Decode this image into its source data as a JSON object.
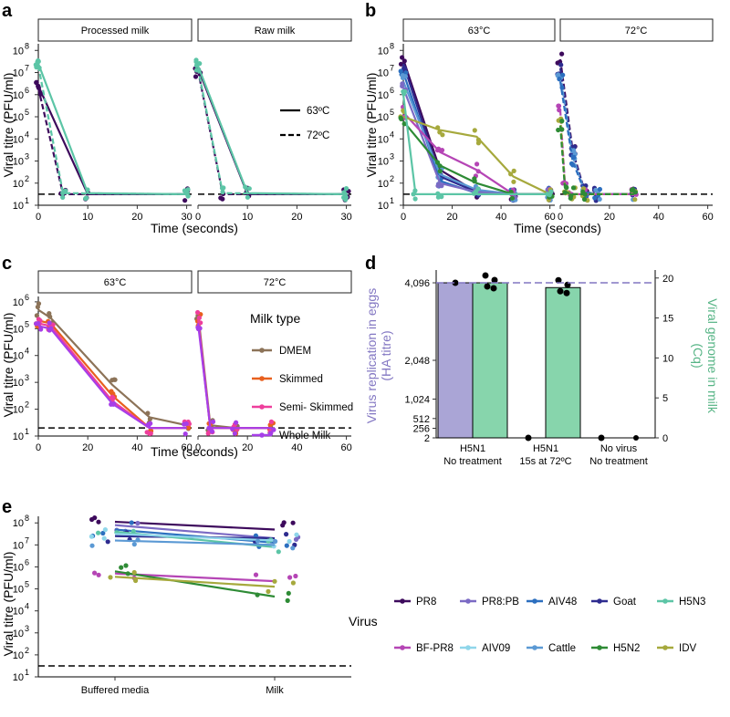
{
  "colors": {
    "PR8": "#3d0a5c",
    "BF-PR8": "#b545b5",
    "PR8:PB": "#7b6ac4",
    "AIV09": "#8fd6ea",
    "AIV48": "#2c6fbf",
    "Cattle": "#5b99d4",
    "Goat": "#2e2c8f",
    "H5N2": "#2e8b35",
    "H5N3": "#5cc5a6",
    "IDV": "#a6a93d",
    "processed": "#3d0a5c",
    "raw": "#5cc5a6",
    "DMEM": "#8c7358",
    "Skimmed": "#e8601f",
    "Semi- Skimmed": "#ee3e9c",
    "Whole Milk": "#a63ee8",
    "ha": "#aaa5d6",
    "genome": "#87d5ac",
    "haLabel": "#8276c2",
    "genomeLabel": "#56b485"
  },
  "chart_data": [
    {
      "panel": "a",
      "type": "line",
      "facets": [
        "Processed milk",
        "Raw milk"
      ],
      "xlabel": "Time (seconds)",
      "ylabel": "Viral titre (PFU/ml)",
      "x_ticks": [
        "0",
        "10",
        "20",
        "30"
      ],
      "xlim": [
        0,
        31
      ],
      "ylim_log10": [
        1,
        8.3
      ],
      "y_ticks": [
        {
          "e": 1,
          "label": "10"
        },
        {
          "e": 2,
          "label": "10"
        },
        {
          "e": 3,
          "label": "10"
        },
        {
          "e": 4,
          "label": "10"
        },
        {
          "e": 5,
          "label": "10"
        },
        {
          "e": 6,
          "label": "10"
        },
        {
          "e": 7,
          "label": "10"
        },
        {
          "e": 8,
          "label": "10"
        }
      ],
      "limit_of_detection_log10": 1.5,
      "legend": [
        {
          "label": "63ºC",
          "style": "solid"
        },
        {
          "label": "72ºC",
          "style": "dashed"
        }
      ],
      "series": [
        {
          "facet": 0,
          "group": "processed",
          "temp": "63",
          "x": [
            0,
            10,
            30
          ],
          "log10": [
            6.4,
            1.5,
            1.5
          ]
        },
        {
          "facet": 0,
          "group": "processed",
          "temp": "72",
          "x": [
            0,
            5,
            30
          ],
          "log10": [
            6.3,
            1.5,
            1.5
          ]
        },
        {
          "facet": 0,
          "group": "raw",
          "temp": "63",
          "x": [
            0,
            10,
            30
          ],
          "log10": [
            7.4,
            1.55,
            1.5
          ]
        },
        {
          "facet": 0,
          "group": "raw",
          "temp": "72",
          "x": [
            0,
            5,
            30
          ],
          "log10": [
            7.3,
            1.55,
            1.5
          ]
        },
        {
          "facet": 1,
          "group": "processed",
          "temp": "63",
          "x": [
            0,
            10,
            30
          ],
          "log10": [
            7.2,
            1.5,
            1.5
          ]
        },
        {
          "facet": 1,
          "group": "processed",
          "temp": "72",
          "x": [
            0,
            5,
            30
          ],
          "log10": [
            7.1,
            1.5,
            1.5
          ]
        },
        {
          "facet": 1,
          "group": "raw",
          "temp": "63",
          "x": [
            0,
            10,
            30
          ],
          "log10": [
            7.3,
            1.55,
            1.5
          ]
        },
        {
          "facet": 1,
          "group": "raw",
          "temp": "72",
          "x": [
            0,
            5,
            30
          ],
          "log10": [
            7.2,
            1.55,
            1.5
          ]
        }
      ]
    },
    {
      "panel": "b",
      "type": "line",
      "facets": [
        "63°C",
        "72°C"
      ],
      "xlabel": "Time (seconds)",
      "ylabel": "Viral titre (PFU/ml)",
      "x_ticks": [
        "0",
        "20",
        "40",
        "60"
      ],
      "xlim": [
        0,
        62
      ],
      "ylim_log10": [
        1,
        8.3
      ],
      "y_ticks": [
        {
          "e": 1,
          "label": "10"
        },
        {
          "e": 2,
          "label": "10"
        },
        {
          "e": 3,
          "label": "10"
        },
        {
          "e": 4,
          "label": "10"
        },
        {
          "e": 5,
          "label": "10"
        },
        {
          "e": 6,
          "label": "10"
        },
        {
          "e": 7,
          "label": "10"
        },
        {
          "e": 8,
          "label": "10"
        }
      ],
      "limit_of_detection_log10": 1.5,
      "series": [
        {
          "facet": 0,
          "group": "PR8",
          "x": [
            0,
            15,
            30,
            45,
            60
          ],
          "log10": [
            7.6,
            2.6,
            1.6,
            1.5,
            1.5
          ]
        },
        {
          "facet": 0,
          "group": "Goat",
          "x": [
            0,
            15,
            30,
            45,
            60
          ],
          "log10": [
            7.4,
            2.3,
            1.6,
            1.5,
            1.5
          ]
        },
        {
          "facet": 0,
          "group": "AIV48",
          "x": [
            0,
            15,
            30,
            45,
            60
          ],
          "log10": [
            7.0,
            2.1,
            1.55,
            1.5,
            1.5
          ]
        },
        {
          "facet": 0,
          "group": "Cattle",
          "x": [
            0,
            15,
            30,
            45,
            60
          ],
          "log10": [
            6.6,
            2.4,
            1.7,
            1.5,
            1.5
          ]
        },
        {
          "facet": 0,
          "group": "PR8:PB",
          "x": [
            0,
            15,
            30,
            45,
            60
          ],
          "log10": [
            6.3,
            2.0,
            1.6,
            1.5,
            1.5
          ]
        },
        {
          "facet": 0,
          "group": "BF-PR8",
          "x": [
            0,
            15,
            30,
            45,
            60
          ],
          "log10": [
            5.2,
            3.4,
            2.6,
            1.5,
            1.5
          ]
        },
        {
          "facet": 0,
          "group": "IDV",
          "x": [
            0,
            15,
            30,
            45,
            60
          ],
          "log10": [
            5.0,
            4.4,
            4.1,
            2.3,
            1.5
          ]
        },
        {
          "facet": 0,
          "group": "H5N2",
          "x": [
            0,
            15,
            30,
            45,
            60
          ],
          "log10": [
            4.8,
            2.8,
            2.0,
            1.5,
            1.5
          ]
        },
        {
          "facet": 0,
          "group": "H5N3",
          "x": [
            0,
            5,
            15,
            30,
            60
          ],
          "log10": [
            6.0,
            1.5,
            1.5,
            1.5,
            1.5
          ]
        },
        {
          "facet": 1,
          "group": "PR8",
          "x": [
            0,
            5,
            10,
            15,
            30
          ],
          "log10": [
            7.6,
            3.5,
            1.6,
            1.5,
            1.5
          ]
        },
        {
          "facet": 1,
          "group": "Goat",
          "x": [
            0,
            5,
            10,
            15,
            30
          ],
          "log10": [
            7.2,
            3.4,
            1.6,
            1.5,
            1.5
          ]
        },
        {
          "facet": 1,
          "group": "Cattle",
          "x": [
            0,
            5,
            10,
            15,
            30
          ],
          "log10": [
            6.9,
            3.2,
            1.6,
            1.5,
            1.5
          ]
        },
        {
          "facet": 1,
          "group": "AIV48",
          "x": [
            0,
            5,
            10,
            15,
            30
          ],
          "log10": [
            6.6,
            3.0,
            1.6,
            1.5,
            1.5
          ]
        },
        {
          "facet": 1,
          "group": "BF-PR8",
          "x": [
            0,
            2,
            5,
            10,
            30
          ],
          "log10": [
            5.3,
            1.8,
            1.5,
            1.5,
            1.5
          ]
        },
        {
          "facet": 1,
          "group": "IDV",
          "x": [
            0,
            2,
            5,
            10,
            30
          ],
          "log10": [
            5.0,
            1.7,
            1.5,
            1.5,
            1.5
          ]
        },
        {
          "facet": 1,
          "group": "H5N2",
          "x": [
            0,
            2,
            5,
            10,
            30
          ],
          "log10": [
            4.6,
            1.6,
            1.5,
            1.5,
            1.5
          ]
        }
      ]
    },
    {
      "panel": "c",
      "type": "line",
      "facets": [
        "63°C",
        "72°C"
      ],
      "xlabel": "Time (seconds)",
      "ylabel": "Viral titre (PFU/ml)",
      "x_ticks": [
        "0",
        "20",
        "40",
        "60"
      ],
      "xlim": [
        0,
        62
      ],
      "ylim_log10": [
        1,
        6.2
      ],
      "y_ticks": [
        {
          "e": 1,
          "label": "10"
        },
        {
          "e": 2,
          "label": "10"
        },
        {
          "e": 3,
          "label": "10"
        },
        {
          "e": 4,
          "label": "10"
        },
        {
          "e": 5,
          "label": "10"
        },
        {
          "e": 6,
          "label": "10"
        }
      ],
      "limit_of_detection_log10": 1.3,
      "legend_title": "Milk type",
      "legend": [
        "DMEM",
        "Skimmed",
        "Semi- Skimmed",
        "Whole Milk"
      ],
      "series": [
        {
          "facet": 0,
          "group": "DMEM",
          "x": [
            0,
            5,
            30,
            45,
            60
          ],
          "log10": [
            5.7,
            5.4,
            2.9,
            1.7,
            1.4
          ]
        },
        {
          "facet": 0,
          "group": "Skimmed",
          "x": [
            0,
            5,
            30,
            45,
            60
          ],
          "log10": [
            5.3,
            5.2,
            2.5,
            1.3,
            1.3
          ]
        },
        {
          "facet": 0,
          "group": "Semi- Skimmed",
          "x": [
            0,
            5,
            30,
            45,
            60
          ],
          "log10": [
            5.2,
            5.1,
            2.3,
            1.3,
            1.3
          ]
        },
        {
          "facet": 0,
          "group": "Whole Milk",
          "x": [
            0,
            5,
            30,
            45,
            60
          ],
          "log10": [
            5.1,
            5.0,
            2.2,
            1.3,
            1.3
          ]
        },
        {
          "facet": 1,
          "group": "DMEM",
          "x": [
            0,
            5,
            15,
            30
          ],
          "log10": [
            5.6,
            1.4,
            1.3,
            1.3
          ]
        },
        {
          "facet": 1,
          "group": "Skimmed",
          "x": [
            0,
            5,
            15,
            30
          ],
          "log10": [
            5.3,
            1.3,
            1.3,
            1.3
          ]
        },
        {
          "facet": 1,
          "group": "Semi- Skimmed",
          "x": [
            0,
            5,
            15,
            30
          ],
          "log10": [
            5.4,
            1.3,
            1.3,
            1.3
          ]
        },
        {
          "facet": 1,
          "group": "Whole Milk",
          "x": [
            0,
            5,
            15,
            30
          ],
          "log10": [
            5.2,
            1.3,
            1.3,
            1.3
          ]
        }
      ]
    },
    {
      "panel": "d",
      "type": "bar",
      "categories": [
        "H5N1\nNo treatment",
        "H5N1\n15s at 72ºC",
        "No virus\nNo treatment"
      ],
      "series": [
        {
          "name": "HA titre",
          "axis": "left",
          "values": [
            4096,
            2,
            2
          ]
        },
        {
          "name": "Cq",
          "axis": "right",
          "values": [
            19.4,
            18.8,
            0
          ]
        }
      ],
      "ylabel_left": [
        "Virus replication in eggs",
        "(HA titre)"
      ],
      "ylabel_right": [
        "Viral genome in milk",
        "(Cq)"
      ],
      "left_ticks": [
        "4,096",
        "2,048",
        "1,024",
        "512",
        "256",
        "2"
      ],
      "right_ticks": [
        0,
        5,
        10,
        15,
        20
      ],
      "right_ylim": [
        0,
        21
      ],
      "reference_line_cq": 19.4
    },
    {
      "panel": "e",
      "type": "line",
      "categories": [
        "Buffered media",
        "Milk"
      ],
      "ylabel": "Viral titre (PFU/ml)",
      "ylim_log10": [
        1,
        8.3
      ],
      "y_ticks": [
        {
          "e": 1,
          "label": "10"
        },
        {
          "e": 2,
          "label": "10"
        },
        {
          "e": 3,
          "label": "10"
        },
        {
          "e": 4,
          "label": "10"
        },
        {
          "e": 5,
          "label": "10"
        },
        {
          "e": 6,
          "label": "10"
        },
        {
          "e": 7,
          "label": "10"
        },
        {
          "e": 8,
          "label": "10"
        }
      ],
      "limit_of_detection_log10": 1.5,
      "legend_title": "Virus",
      "legend": [
        "PR8",
        "PR8:PB",
        "AIV48",
        "Goat",
        "H5N3",
        "BF-PR8",
        "AIV09",
        "Cattle",
        "H5N2",
        "IDV"
      ],
      "series": [
        {
          "name": "PR8",
          "values_log10": [
            8.05,
            7.7
          ]
        },
        {
          "name": "PR8:PB",
          "values_log10": [
            7.9,
            7.3
          ]
        },
        {
          "name": "AIV48",
          "values_log10": [
            7.7,
            7.1
          ]
        },
        {
          "name": "Goat",
          "values_log10": [
            7.4,
            7.3
          ]
        },
        {
          "name": "H5N3",
          "values_log10": [
            7.6,
            6.9
          ]
        },
        {
          "name": "BF-PR8",
          "values_log10": [
            5.7,
            5.35
          ]
        },
        {
          "name": "AIV09",
          "values_log10": [
            7.5,
            7.2
          ]
        },
        {
          "name": "Cattle",
          "values_log10": [
            7.2,
            7.0
          ]
        },
        {
          "name": "H5N2",
          "values_log10": [
            5.8,
            4.65
          ]
        },
        {
          "name": "IDV",
          "values_log10": [
            5.55,
            5.1
          ]
        }
      ]
    }
  ],
  "panel_labels": [
    "a",
    "b",
    "c",
    "d",
    "e"
  ]
}
